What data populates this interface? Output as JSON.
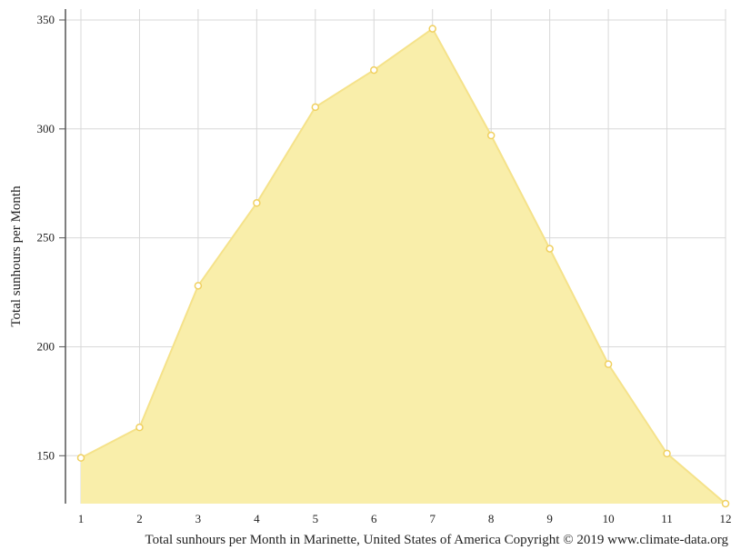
{
  "chart_data": {
    "type": "area",
    "title": "",
    "xlabel": "",
    "ylabel": "Total sunhours per Month",
    "caption": "Total sunhours per Month in Marinette, United States of America Copyright © 2019 www.climate-data.org",
    "x": [
      1,
      2,
      3,
      4,
      5,
      6,
      7,
      8,
      9,
      10,
      11,
      12
    ],
    "x_tick_labels": [
      "1",
      "2",
      "3",
      "4",
      "5",
      "6",
      "7",
      "8",
      "9",
      "10",
      "11",
      "12"
    ],
    "y_ticks": [
      150,
      200,
      250,
      300,
      350
    ],
    "y_tick_labels": [
      "150",
      "200",
      "250",
      "300",
      "350"
    ],
    "ylim": [
      128,
      355
    ],
    "grid": true,
    "legend": "none",
    "series": [
      {
        "values": [
          149,
          163,
          228,
          266,
          310,
          327,
          346,
          297,
          245,
          192,
          151,
          128
        ],
        "fill_color": "#f9eeaa",
        "line_color": "#f5e28a",
        "marker_color": "#ffffff",
        "marker_stroke": "#f0d060"
      }
    ],
    "grid_color": "#d8d8d8",
    "axis_color": "#555555"
  }
}
